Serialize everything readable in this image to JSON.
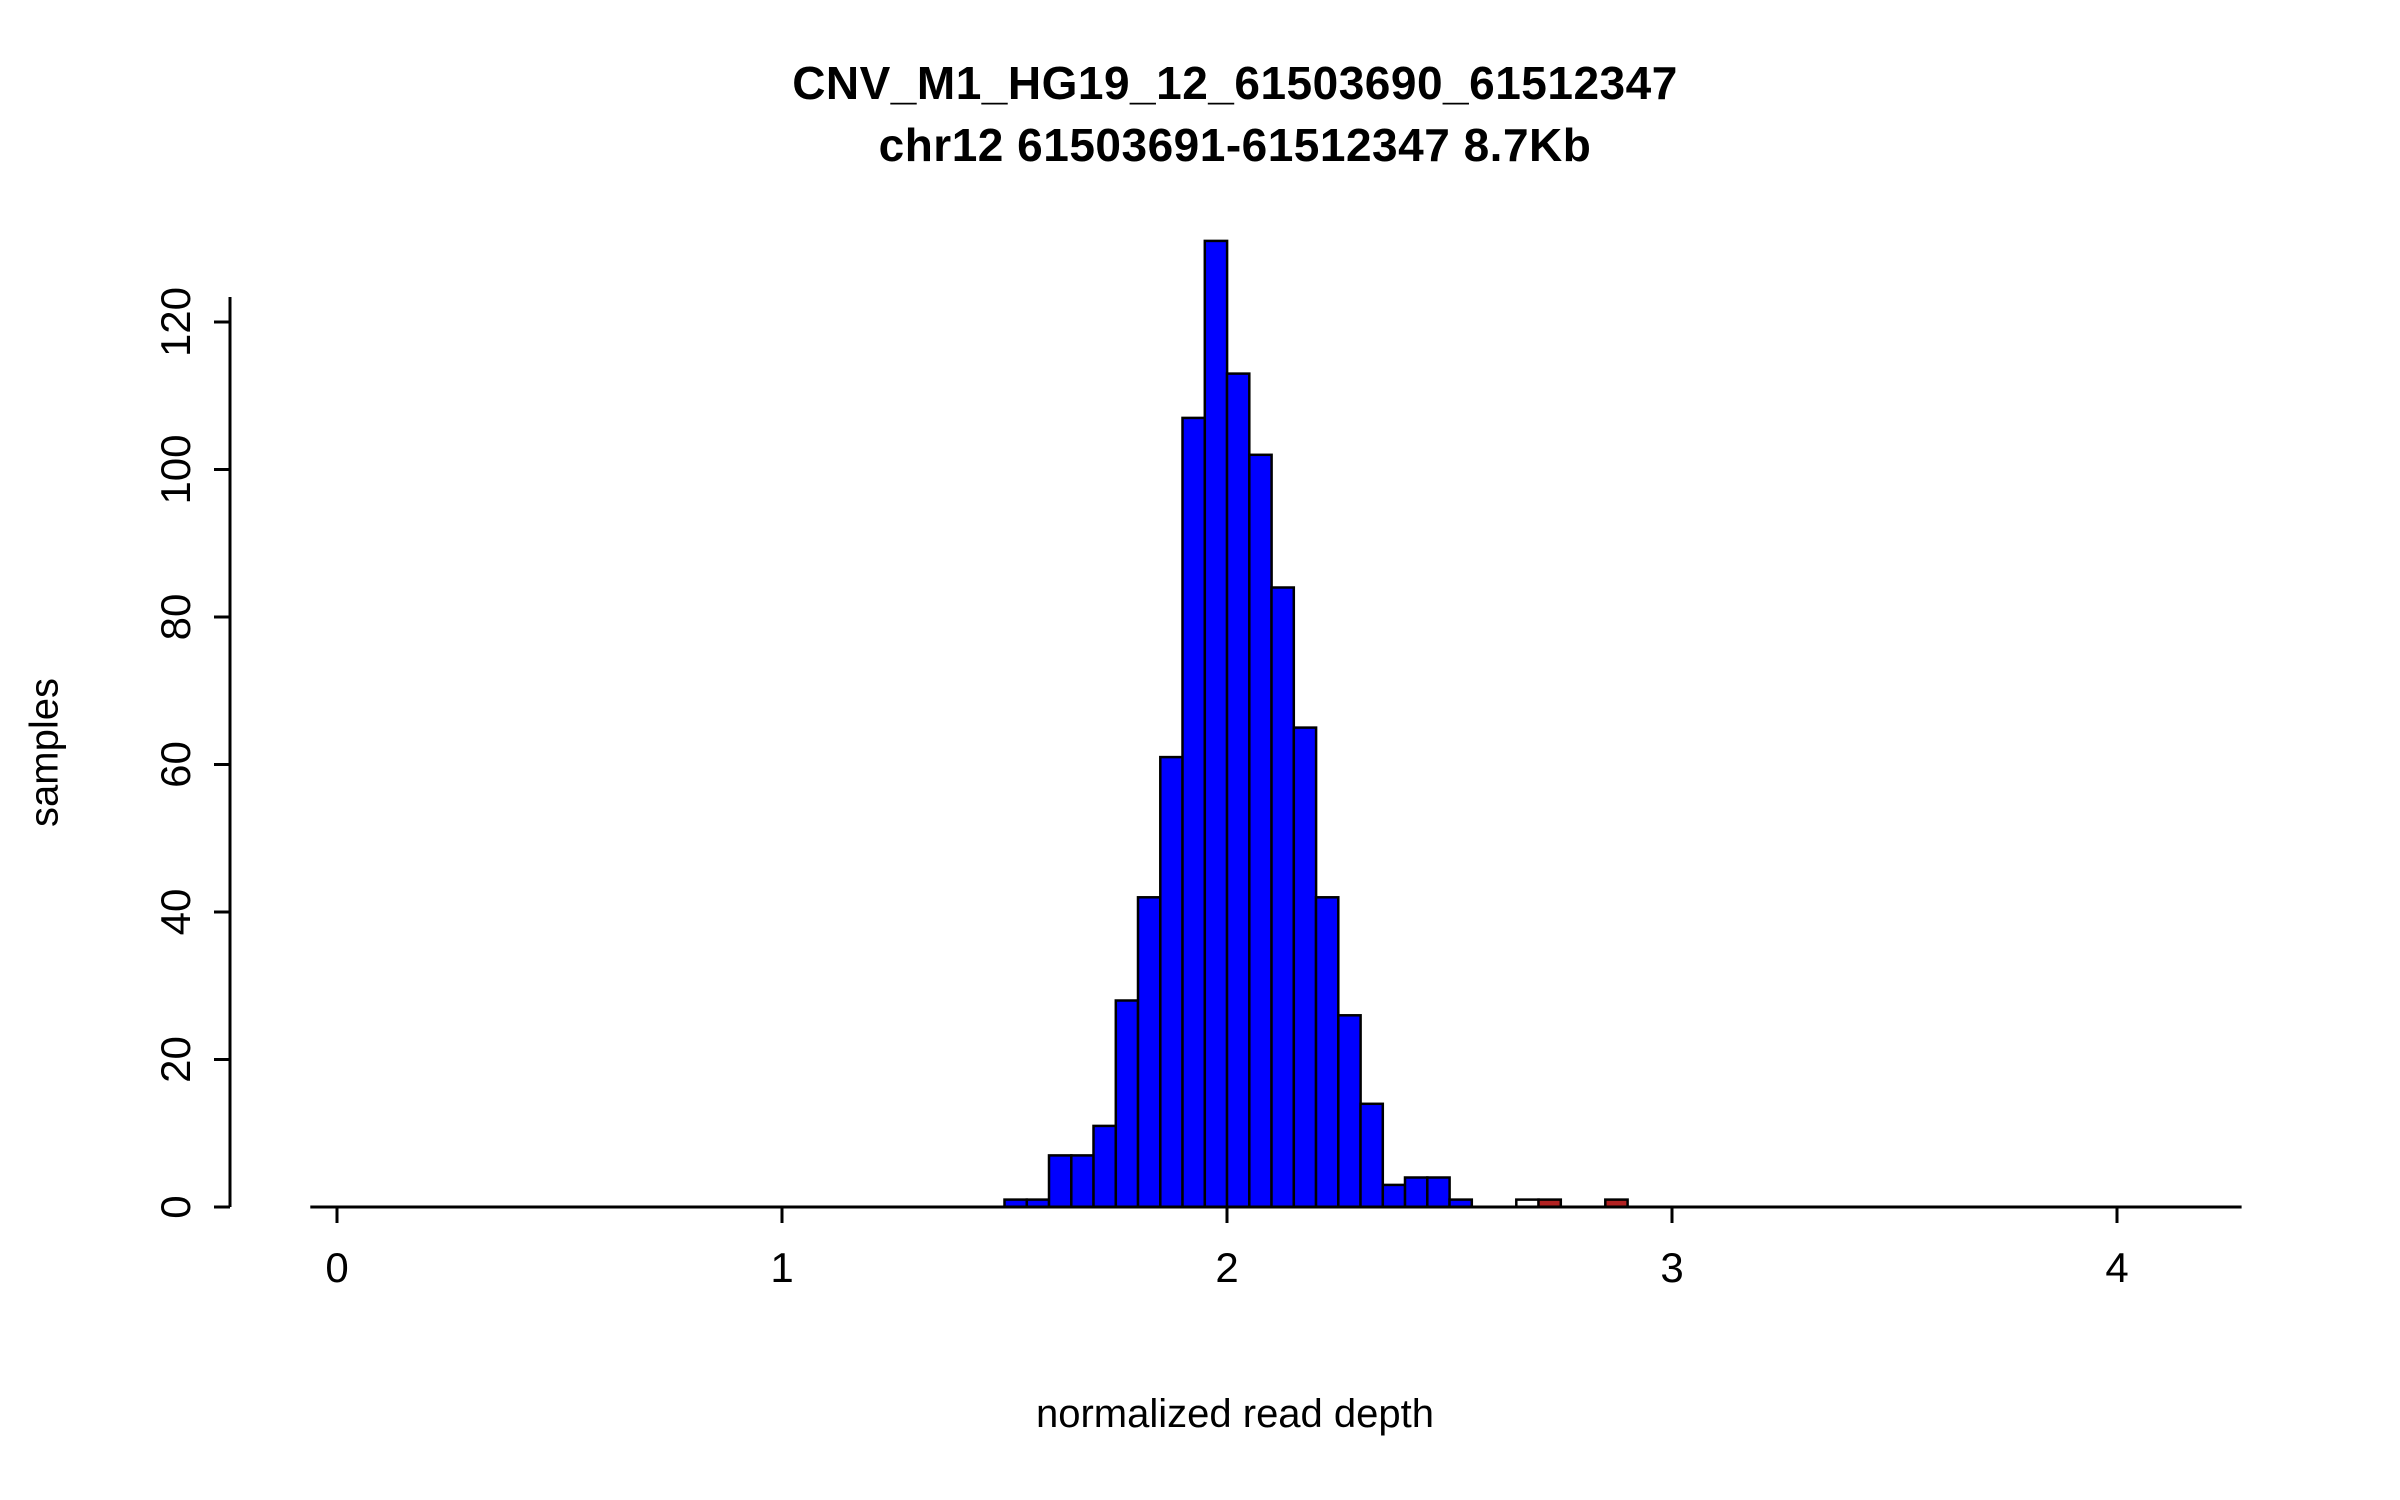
{
  "chart_data": {
    "type": "bar",
    "title": "CNV_M1_HG19_12_61503690_61512347",
    "subtitle": "chr12 61503691-61512347 8.7Kb",
    "xlabel": "normalized read depth",
    "ylabel": "samples",
    "x_ticks": [
      0,
      1,
      2,
      3,
      4
    ],
    "y_ticks": [
      0,
      20,
      40,
      60,
      80,
      100,
      120
    ],
    "xlim": [
      -0.06,
      4.28
    ],
    "ylim": [
      0,
      131
    ],
    "bin_width": 0.05,
    "grid": false,
    "legend": "none",
    "colors": {
      "blue": "#0000FF",
      "red": "#B22222",
      "white": "#FFFFFF",
      "axis": "#000000"
    },
    "bars": [
      {
        "x": 1.5,
        "count": 1,
        "color": "blue"
      },
      {
        "x": 1.55,
        "count": 1,
        "color": "blue"
      },
      {
        "x": 1.6,
        "count": 7,
        "color": "blue"
      },
      {
        "x": 1.65,
        "count": 7,
        "color": "blue"
      },
      {
        "x": 1.7,
        "count": 11,
        "color": "blue"
      },
      {
        "x": 1.75,
        "count": 28,
        "color": "blue"
      },
      {
        "x": 1.8,
        "count": 42,
        "color": "blue"
      },
      {
        "x": 1.85,
        "count": 61,
        "color": "blue"
      },
      {
        "x": 1.9,
        "count": 107,
        "color": "blue"
      },
      {
        "x": 1.95,
        "count": 131,
        "color": "blue"
      },
      {
        "x": 2.0,
        "count": 113,
        "color": "blue"
      },
      {
        "x": 2.05,
        "count": 102,
        "color": "blue"
      },
      {
        "x": 2.1,
        "count": 84,
        "color": "blue"
      },
      {
        "x": 2.15,
        "count": 65,
        "color": "blue"
      },
      {
        "x": 2.2,
        "count": 42,
        "color": "blue"
      },
      {
        "x": 2.25,
        "count": 26,
        "color": "blue"
      },
      {
        "x": 2.3,
        "count": 14,
        "color": "blue"
      },
      {
        "x": 2.35,
        "count": 3,
        "color": "blue"
      },
      {
        "x": 2.4,
        "count": 4,
        "color": "blue"
      },
      {
        "x": 2.45,
        "count": 4,
        "color": "blue"
      },
      {
        "x": 2.5,
        "count": 1,
        "color": "blue"
      },
      {
        "x": 2.65,
        "count": 1,
        "color": "white"
      },
      {
        "x": 2.7,
        "count": 1,
        "color": "red"
      },
      {
        "x": 2.85,
        "count": 1,
        "color": "red"
      }
    ]
  }
}
